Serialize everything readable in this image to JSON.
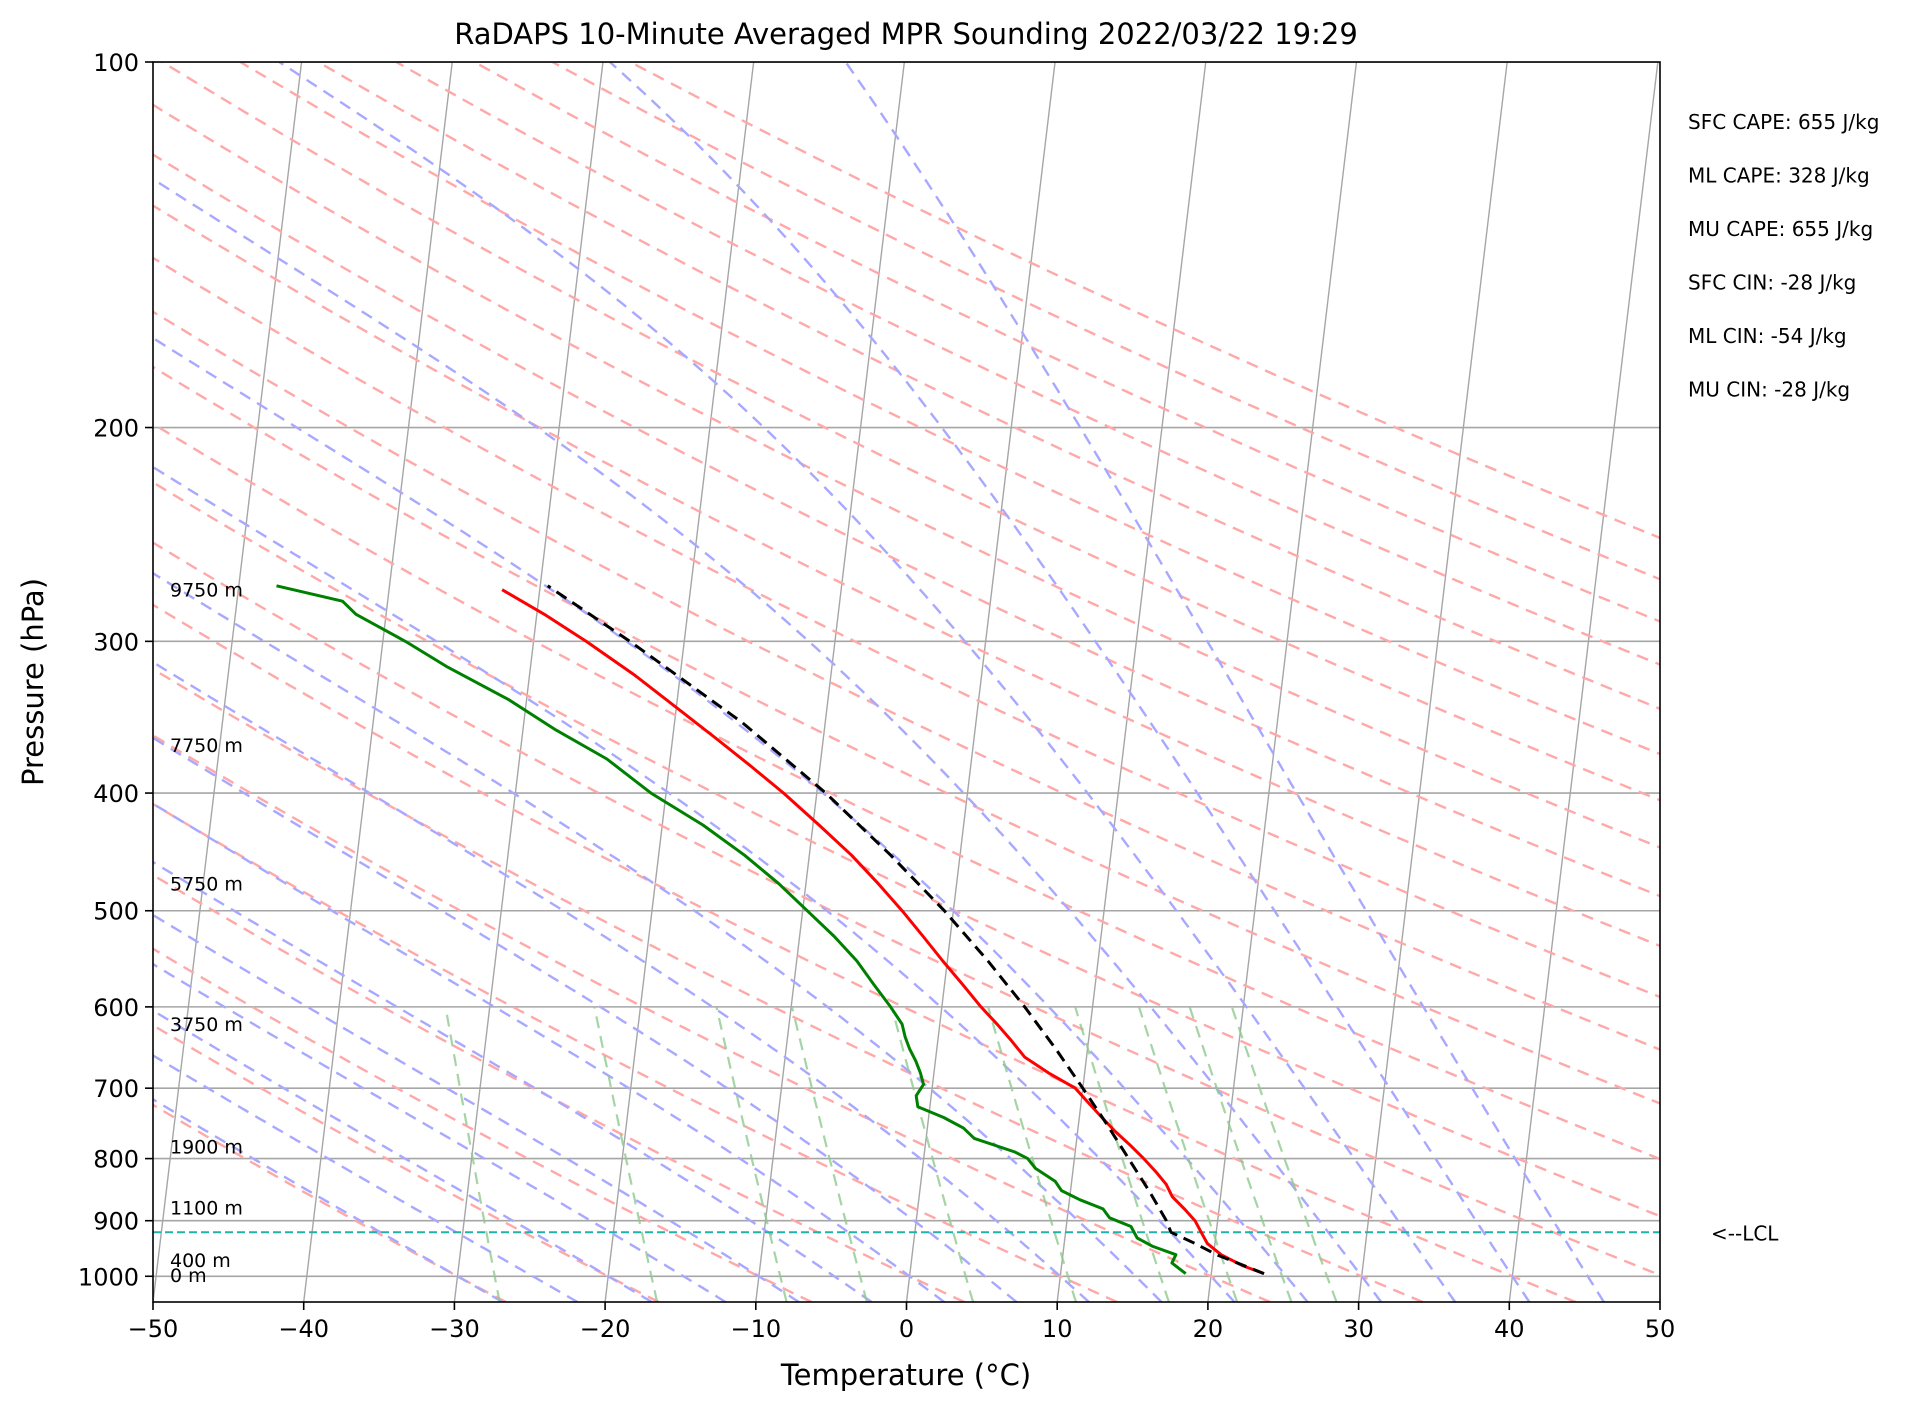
{
  "chart_data": {
    "type": "line",
    "title": "RaDAPS 10-Minute Averaged MPR Sounding 2022/03/22 19:29",
    "xlabel": "Temperature (°C)",
    "ylabel": "Pressure (hPa)",
    "xlim": [
      -50,
      50
    ],
    "ylim": [
      1050,
      100
    ],
    "y_scale": "log",
    "grid": true,
    "x_ticks": [
      "−50",
      "−40",
      "−30",
      "−20",
      "−10",
      "0",
      "10",
      "20",
      "30",
      "40",
      "50"
    ],
    "x_tick_values": [
      -50,
      -40,
      -30,
      -20,
      -10,
      0,
      10,
      20,
      30,
      40,
      50
    ],
    "y_ticks": [
      "100",
      "200",
      "300",
      "400",
      "500",
      "600",
      "700",
      "800",
      "900",
      "1000"
    ],
    "y_tick_values": [
      100,
      200,
      300,
      400,
      500,
      600,
      700,
      800,
      900,
      1000
    ],
    "series": [
      {
        "role": "temperature",
        "color": "#ff0000",
        "points": [
          {
            "p": 995,
            "t": 23.5
          },
          {
            "p": 980,
            "t": 22.0
          },
          {
            "p": 960,
            "t": 20.5
          },
          {
            "p": 940,
            "t": 19.5
          },
          {
            "p": 920,
            "t": 19.0
          },
          {
            "p": 900,
            "t": 18.5
          },
          {
            "p": 880,
            "t": 17.7
          },
          {
            "p": 860,
            "t": 16.8
          },
          {
            "p": 840,
            "t": 16.3
          },
          {
            "p": 820,
            "t": 15.5
          },
          {
            "p": 800,
            "t": 14.6
          },
          {
            "p": 780,
            "t": 13.6
          },
          {
            "p": 760,
            "t": 12.5
          },
          {
            "p": 740,
            "t": 11.5
          },
          {
            "p": 720,
            "t": 10.5
          },
          {
            "p": 700,
            "t": 9.5
          },
          {
            "p": 680,
            "t": 7.6
          },
          {
            "p": 660,
            "t": 5.9
          },
          {
            "p": 640,
            "t": 4.9
          },
          {
            "p": 620,
            "t": 3.8
          },
          {
            "p": 600,
            "t": 2.6
          },
          {
            "p": 575,
            "t": 1.2
          },
          {
            "p": 550,
            "t": -0.3
          },
          {
            "p": 525,
            "t": -1.8
          },
          {
            "p": 500,
            "t": -3.4
          },
          {
            "p": 475,
            "t": -5.2
          },
          {
            "p": 450,
            "t": -7.2
          },
          {
            "p": 425,
            "t": -9.6
          },
          {
            "p": 400,
            "t": -12.2
          },
          {
            "p": 380,
            "t": -14.6
          },
          {
            "p": 360,
            "t": -17.2
          },
          {
            "p": 340,
            "t": -20.0
          },
          {
            "p": 320,
            "t": -23.0
          },
          {
            "p": 300,
            "t": -26.5
          },
          {
            "p": 285,
            "t": -29.5
          },
          {
            "p": 272,
            "t": -32.5
          }
        ]
      },
      {
        "role": "dewpoint",
        "color": "#008000",
        "points": [
          {
            "p": 995,
            "t": 18.3
          },
          {
            "p": 985,
            "t": 17.8
          },
          {
            "p": 975,
            "t": 17.3
          },
          {
            "p": 960,
            "t": 17.5
          },
          {
            "p": 945,
            "t": 15.9
          },
          {
            "p": 930,
            "t": 14.8
          },
          {
            "p": 910,
            "t": 14.3
          },
          {
            "p": 895,
            "t": 12.8
          },
          {
            "p": 880,
            "t": 12.3
          },
          {
            "p": 865,
            "t": 10.7
          },
          {
            "p": 850,
            "t": 9.4
          },
          {
            "p": 835,
            "t": 8.9
          },
          {
            "p": 815,
            "t": 7.5
          },
          {
            "p": 800,
            "t": 6.9
          },
          {
            "p": 790,
            "t": 6.0
          },
          {
            "p": 770,
            "t": 3.2
          },
          {
            "p": 755,
            "t": 2.4
          },
          {
            "p": 740,
            "t": 1.0
          },
          {
            "p": 725,
            "t": -0.8
          },
          {
            "p": 710,
            "t": -1.0
          },
          {
            "p": 695,
            "t": -0.6
          },
          {
            "p": 680,
            "t": -0.9
          },
          {
            "p": 665,
            "t": -1.3
          },
          {
            "p": 650,
            "t": -1.8
          },
          {
            "p": 635,
            "t": -2.2
          },
          {
            "p": 620,
            "t": -2.5
          },
          {
            "p": 600,
            "t": -3.4
          },
          {
            "p": 575,
            "t": -4.7
          },
          {
            "p": 550,
            "t": -6.0
          },
          {
            "p": 525,
            "t": -7.7
          },
          {
            "p": 500,
            "t": -9.7
          },
          {
            "p": 475,
            "t": -11.8
          },
          {
            "p": 450,
            "t": -14.3
          },
          {
            "p": 425,
            "t": -17.3
          },
          {
            "p": 400,
            "t": -21.0
          },
          {
            "p": 375,
            "t": -24.2
          },
          {
            "p": 355,
            "t": -27.8
          },
          {
            "p": 335,
            "t": -31.2
          },
          {
            "p": 315,
            "t": -35.5
          },
          {
            "p": 300,
            "t": -38.5
          },
          {
            "p": 285,
            "t": -42.0
          },
          {
            "p": 278,
            "t": -43.0
          },
          {
            "p": 270,
            "t": -47.5
          }
        ]
      },
      {
        "role": "parcel",
        "color": "#000000",
        "points": [
          {
            "p": 995,
            "t": 23.5
          },
          {
            "p": 960,
            "t": 20.2
          },
          {
            "p": 940,
            "t": 18.7
          },
          {
            "p": 920,
            "t": 17.0
          },
          {
            "p": 900,
            "t": 16.6
          },
          {
            "p": 850,
            "t": 15.2
          },
          {
            "p": 800,
            "t": 13.6
          },
          {
            "p": 750,
            "t": 11.9
          },
          {
            "p": 700,
            "t": 10.0
          },
          {
            "p": 650,
            "t": 7.9
          },
          {
            "p": 600,
            "t": 5.5
          },
          {
            "p": 550,
            "t": 2.7
          },
          {
            "p": 500,
            "t": -0.6
          },
          {
            "p": 450,
            "t": -4.6
          },
          {
            "p": 400,
            "t": -9.4
          },
          {
            "p": 350,
            "t": -15.5
          },
          {
            "p": 300,
            "t": -23.6
          },
          {
            "p": 270,
            "t": -29.5
          }
        ]
      }
    ],
    "lcl": {
      "pressure": 920,
      "label": "<--LCL",
      "color": "#20b2aa"
    },
    "height_labels": [
      {
        "p": 272,
        "text": "9750 m"
      },
      {
        "p": 365,
        "text": "7750 m"
      },
      {
        "p": 475,
        "text": "5750 m"
      },
      {
        "p": 620,
        "text": "3750 m"
      },
      {
        "p": 782,
        "text": "1900 m"
      },
      {
        "p": 878,
        "text": "1100 m"
      },
      {
        "p": 970,
        "text": "400 m"
      },
      {
        "p": 998,
        "text": "0 m"
      }
    ],
    "indices": [
      "SFC CAPE: 655 J/kg",
      "ML CAPE: 328 J/kg",
      "MU CAPE: 655 J/kg",
      "SFC CIN: -28 J/kg",
      "ML CIN: -54 J/kg",
      "MU CIN: -28 J/kg"
    ],
    "colors": {
      "isotherm": "#a6a6a6",
      "dry_adiabat": "#ffa8a8",
      "moist_adiabat": "#a8a8ff",
      "mixing_ratio": "#8fc98f",
      "isobar": "#a6a6a6"
    }
  }
}
